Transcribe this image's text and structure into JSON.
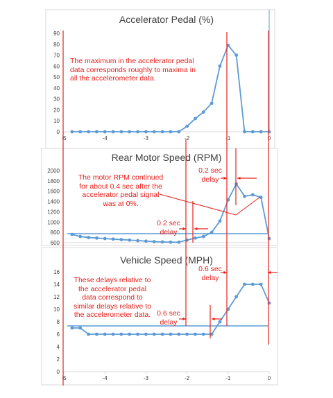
{
  "colors": {
    "series": "#5b9bd5",
    "annotation": "#e8201c",
    "axis": "#d9d9d9",
    "text": "#404040"
  },
  "chart_data": [
    {
      "type": "line",
      "title": "Accelerator Pedal (%)",
      "xlim": [
        -5,
        0
      ],
      "ylim": [
        0,
        90
      ],
      "x_ticks": [
        "-5",
        "-4",
        "-3",
        "-2",
        "-1",
        "0"
      ],
      "y_ticks": [
        "0",
        "10",
        "20",
        "30",
        "40",
        "50",
        "60",
        "70",
        "80",
        "90"
      ],
      "series": [
        {
          "x": [
            -4.8,
            -4.6,
            -4.4,
            -4.2,
            -4.0,
            -3.8,
            -3.6,
            -3.4,
            -3.2,
            -3.0,
            -2.8,
            -2.6,
            -2.4,
            -2.2,
            -2.0,
            -1.8,
            -1.6,
            -1.4,
            -1.2,
            -1.0,
            -0.8,
            -0.6,
            -0.4,
            -0.2,
            0.0
          ],
          "y": [
            0,
            0,
            0,
            0,
            0,
            0,
            0,
            0,
            0,
            0,
            0,
            0,
            0,
            0,
            5,
            12,
            18,
            26,
            60,
            79,
            70,
            0,
            0,
            0,
            0
          ]
        }
      ]
    },
    {
      "type": "line",
      "title": "Rear Motor Speed (RPM)",
      "xlim": [
        -5,
        0
      ],
      "ylim": [
        600,
        2000
      ],
      "y_ticks": [
        "600",
        "800",
        "1000",
        "1200",
        "1400",
        "1600",
        "1800",
        "2000"
      ],
      "series": [
        {
          "x": [
            -4.8,
            -4.6,
            -4.4,
            -4.2,
            -4.0,
            -3.8,
            -3.6,
            -3.4,
            -3.2,
            -3.0,
            -2.8,
            -2.6,
            -2.4,
            -2.2,
            -2.0,
            -1.8,
            -1.6,
            -1.4,
            -1.2,
            -1.0,
            -0.8,
            -0.6,
            -0.4,
            -0.2,
            0.0
          ],
          "y": [
            760,
            720,
            700,
            690,
            680,
            670,
            660,
            650,
            640,
            630,
            620,
            615,
            610,
            610,
            650,
            690,
            720,
            800,
            1020,
            1430,
            1740,
            1500,
            1530,
            1480,
            680
          ]
        }
      ]
    },
    {
      "type": "line",
      "title": "Vehicle Speed (MPH)",
      "xlim": [
        -5,
        0
      ],
      "ylim": [
        0,
        16
      ],
      "x_ticks": [
        "-5",
        "-4",
        "-3",
        "-2",
        "-1",
        "0"
      ],
      "y_ticks": [
        "0",
        "2",
        "4",
        "6",
        "8",
        "10",
        "12",
        "14",
        "16"
      ],
      "series": [
        {
          "x": [
            -4.8,
            -4.6,
            -4.4,
            -4.2,
            -4.0,
            -3.8,
            -3.6,
            -3.4,
            -3.2,
            -3.0,
            -2.8,
            -2.6,
            -2.4,
            -2.2,
            -2.0,
            -1.8,
            -1.6,
            -1.4,
            -1.2,
            -1.0,
            -0.8,
            -0.6,
            -0.4,
            -0.2,
            0.0
          ],
          "y": [
            7,
            7,
            6,
            6,
            6,
            6,
            6,
            6,
            6,
            6,
            6,
            6,
            6,
            6,
            6,
            6,
            6,
            6,
            8,
            10,
            12,
            14,
            14,
            14,
            11
          ]
        }
      ]
    }
  ],
  "annotations": {
    "pedal_note": [
      "The maximum in the accelerator pedal",
      "data corresponds roughly to maxima in",
      "all the accelerometer data."
    ],
    "motor_note": [
      "The motor RPM continued",
      "for about 0.4 sec after the",
      "accelerator pedal signal",
      "was at 0%."
    ],
    "speed_note": [
      "These delays relative to",
      "the accelerator pedal",
      "data correspond to",
      "similar delays relative to",
      "the accelerometer data."
    ],
    "delay_02_top": [
      "0.2 sec",
      "delay"
    ],
    "delay_02_low": [
      "0.2 sec",
      "delay"
    ],
    "delay_06_top": [
      "0.6 sec",
      "delay"
    ],
    "delay_06_low": [
      "0.6 sec",
      "delay"
    ]
  }
}
